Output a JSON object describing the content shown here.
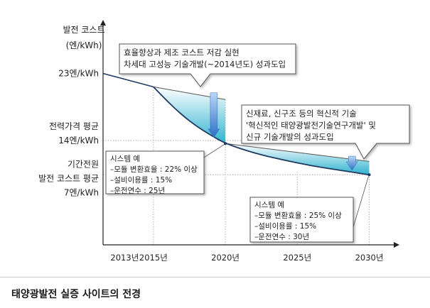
{
  "chart_data": {
    "type": "area",
    "yaxis_title": [
      "발전 코스트",
      "(엔/kWh)"
    ],
    "ytick_labels": [
      {
        "value": 23,
        "lines": [
          "23엔/kWh"
        ]
      },
      {
        "value": 14,
        "lines": [
          "전력가격 평균",
          "14엔/kWh"
        ]
      },
      {
        "value": 7,
        "lines": [
          "기간전원",
          "발전 코스트 평균",
          "7엔/kWh"
        ]
      }
    ],
    "xtick_labels": [
      "2013년",
      "2015년",
      "2020년",
      "2025년",
      "2030년"
    ],
    "xtick_values": [
      2013,
      2015,
      2020,
      2025,
      2030
    ],
    "xlim": [
      2011.5,
      2032
    ],
    "ylim": [
      0,
      30
    ],
    "cost_curve": {
      "x": [
        2015,
        2016,
        2017,
        2018,
        2019,
        2020,
        2022,
        2024,
        2026,
        2028,
        2030
      ],
      "y": [
        21.2,
        19.2,
        17.4,
        15.9,
        14.7,
        13.6,
        12.3,
        11.4,
        10.6,
        10.0,
        9.4
      ]
    },
    "upper_line_1": {
      "x": [
        2015,
        2020
      ],
      "y": [
        21.2,
        19.5
      ]
    },
    "upper_line_2": {
      "x": [
        2020,
        2030
      ],
      "y": [
        13.6,
        11.2
      ]
    },
    "reference_lines": [
      {
        "y": 14
      },
      {
        "y": 9.4
      }
    ],
    "annotations": {
      "callout1": [
        "효율향상과 제조 코스트 저감 실현",
        "차세대 고성능 기술개발(~2014년도) 성과도입"
      ],
      "callout2": [
        "신재료, 신구조 등의 혁신적 기술",
        "'혁신적인 태양광발전기술연구개발' 및",
        "신규 기술개발의 성과도입"
      ],
      "box1": [
        "시스템 예",
        "–모듈 변환효율 : 22% 이상",
        "–설비이용률 : 15%",
        "–운전연수 : 25년"
      ],
      "box2": [
        "시스템 예",
        "–모듈 변환효율 : 25% 이상",
        "–설비이용률 : 15%",
        "–운전연수 : 30년"
      ]
    },
    "colors": {
      "fill_top": "#ffffff",
      "fill_bottom": "#2fb2cf",
      "curve": "#1f3a63",
      "arrow": "#3a7fd0",
      "ref_line": "#c8a0a0"
    }
  },
  "caption": "태양광발전 실증 사이트의 전경"
}
